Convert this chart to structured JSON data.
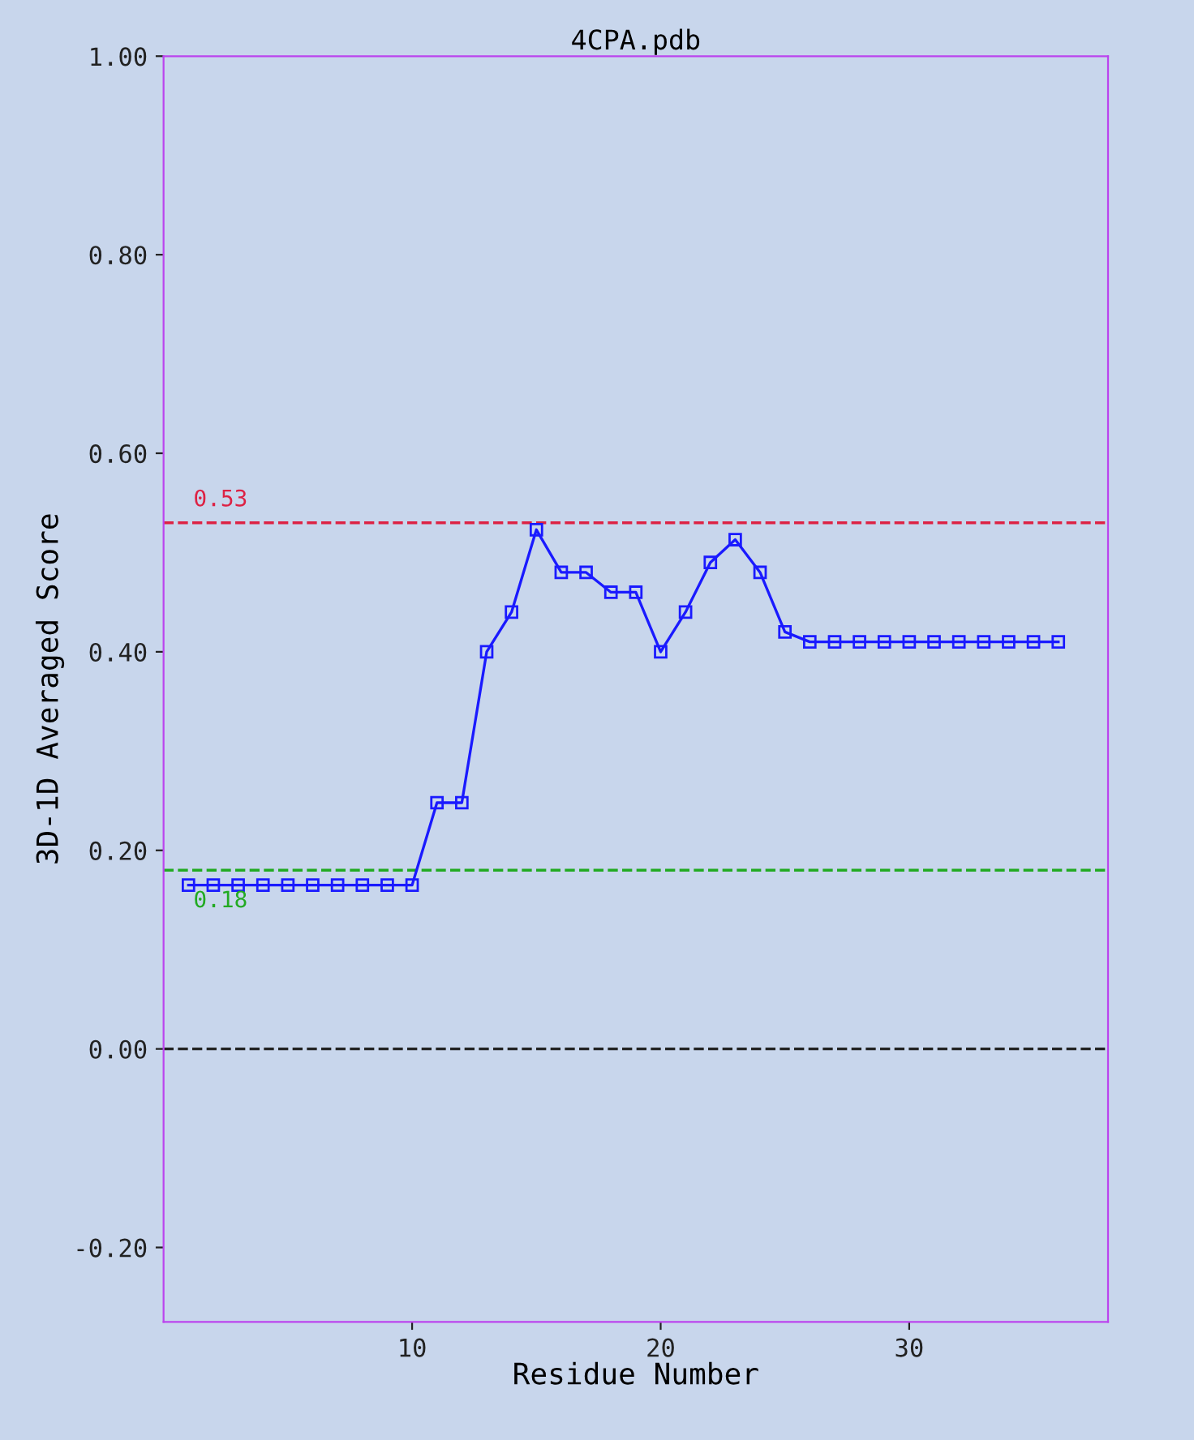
{
  "chart_data": {
    "type": "line",
    "title": "4CPA.pdb",
    "xlabel": "Residue Number",
    "ylabel": "3D-1D Averaged Score",
    "x": [
      1,
      2,
      3,
      4,
      5,
      6,
      7,
      8,
      9,
      10,
      11,
      12,
      13,
      14,
      15,
      16,
      17,
      18,
      19,
      20,
      21,
      22,
      23,
      24,
      25,
      26,
      27,
      28,
      29,
      30,
      31,
      32,
      33,
      34,
      35,
      36
    ],
    "series": [
      {
        "color": "#1a1aff",
        "values": [
          0.165,
          0.165,
          0.165,
          0.165,
          0.165,
          0.165,
          0.165,
          0.165,
          0.165,
          0.165,
          0.248,
          0.248,
          0.4,
          0.44,
          0.523,
          0.48,
          0.48,
          0.46,
          0.46,
          0.4,
          0.44,
          0.49,
          0.513,
          0.48,
          0.42,
          0.41,
          0.41,
          0.41,
          0.41,
          0.41,
          0.41,
          0.41,
          0.41,
          0.41,
          0.41,
          0.41
        ]
      }
    ],
    "marker": "square",
    "line_style": "solid",
    "grid": false,
    "xlim": [
      0,
      38
    ],
    "ylim": [
      -0.275,
      1.0
    ],
    "xticks": [
      10,
      20,
      30
    ],
    "yticks": [
      {
        "value": -0.2,
        "label": "-0.20"
      },
      {
        "value": 0,
        "label": "0.00"
      },
      {
        "value": 0.2,
        "label": "0.20"
      },
      {
        "value": 0.4,
        "label": "0.40"
      },
      {
        "value": 0.6,
        "label": "0.60"
      },
      {
        "value": 0.8,
        "label": "0.80"
      },
      {
        "value": 1.0,
        "label": "1.00"
      }
    ],
    "ref_lines": [
      {
        "axis": "y",
        "value": 0.53,
        "label": "0.53",
        "color": "#dd2244",
        "line_style": "dashed"
      },
      {
        "axis": "y",
        "value": 0.18,
        "label": "0.18",
        "color": "#22aa22",
        "line_style": "dashed"
      },
      {
        "axis": "y",
        "value": 0,
        "color": "#222222",
        "line_style": "dashed"
      }
    ]
  }
}
